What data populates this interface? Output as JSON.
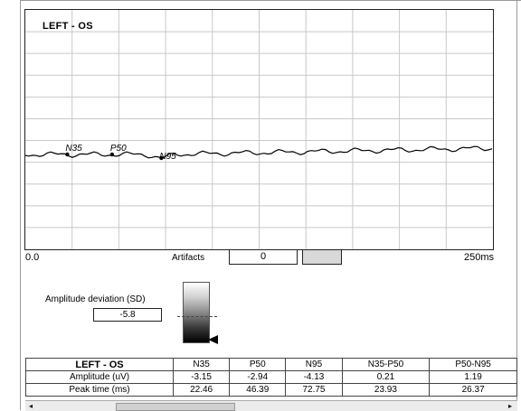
{
  "plot": {
    "title": "LEFT - OS",
    "x_start": "0.0",
    "x_end": "250ms",
    "peaks": [
      {
        "name": "N35",
        "time_ms": 22.46,
        "amplitude_uv": -3.15
      },
      {
        "name": "P50",
        "time_ms": 46.39,
        "amplitude_uv": -2.94
      },
      {
        "name": "N95",
        "time_ms": 72.75,
        "amplitude_uv": -4.13
      }
    ],
    "trace_color": "#000000",
    "grid_color": "#c8c8c8"
  },
  "artifacts": {
    "label": "Artifacts",
    "value": "0"
  },
  "deviation": {
    "label": "Amplitude deviation (SD)",
    "value": "-5.8"
  },
  "table": {
    "title": "LEFT - OS",
    "headers": [
      "N35",
      "P50",
      "N95",
      "N35-P50",
      "P50-N95"
    ],
    "rows": [
      {
        "label": "Amplitude (uV)",
        "values": [
          "-3.15",
          "-2.94",
          "-4.13",
          "0.21",
          "1.19"
        ]
      },
      {
        "label": "Peak time (ms)",
        "values": [
          "22.46",
          "46.39",
          "72.75",
          "23.93",
          "26.37"
        ]
      }
    ]
  }
}
